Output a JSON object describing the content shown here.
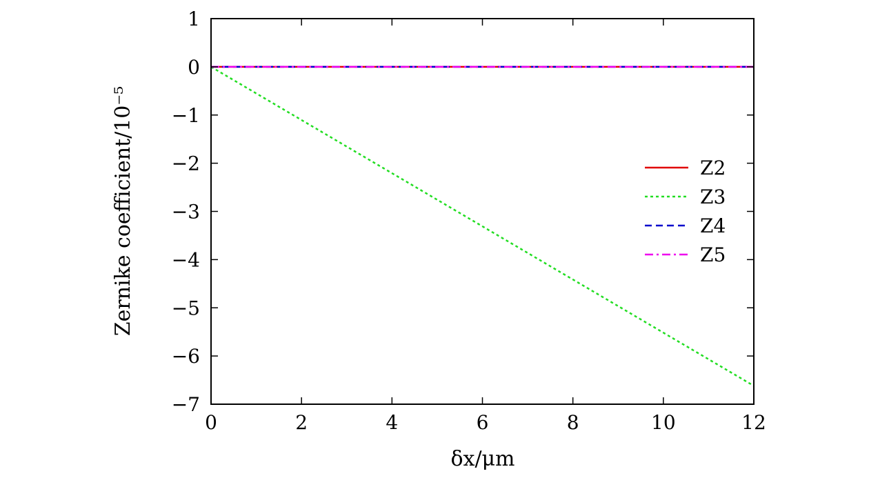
{
  "chart_data": {
    "type": "line",
    "title": "",
    "xlabel": "δx/μm",
    "ylabel": "Zernike coefficient/10⁻⁵",
    "xlim": [
      0,
      12
    ],
    "ylim": [
      -7,
      1
    ],
    "x_ticks": [
      0,
      2,
      4,
      6,
      8,
      10,
      12
    ],
    "y_ticks": [
      1,
      0,
      -1,
      -2,
      -3,
      -4,
      -5,
      -6,
      -7
    ],
    "x_tick_labels": [
      "0",
      "2",
      "4",
      "6",
      "8",
      "10",
      "12"
    ],
    "y_tick_labels": [
      "1",
      "0",
      "−1",
      "−2",
      "−3",
      "−4",
      "−5",
      "−6",
      "−7"
    ],
    "grid": false,
    "legend_position": "right",
    "series": [
      {
        "name": "Z2",
        "color": "#e00000",
        "dash": "solid",
        "x": [
          0,
          12
        ],
        "y": [
          0,
          0
        ]
      },
      {
        "name": "Z3",
        "color": "#22dd22",
        "dash": "dotted",
        "x": [
          0,
          12
        ],
        "y": [
          0,
          -6.62
        ]
      },
      {
        "name": "Z4",
        "color": "#0000cc",
        "dash": "dashed",
        "x": [
          0,
          12
        ],
        "y": [
          0,
          0
        ]
      },
      {
        "name": "Z5",
        "color": "#ee00ee",
        "dash": "dashdot",
        "x": [
          0,
          12
        ],
        "y": [
          0,
          0
        ]
      }
    ]
  }
}
